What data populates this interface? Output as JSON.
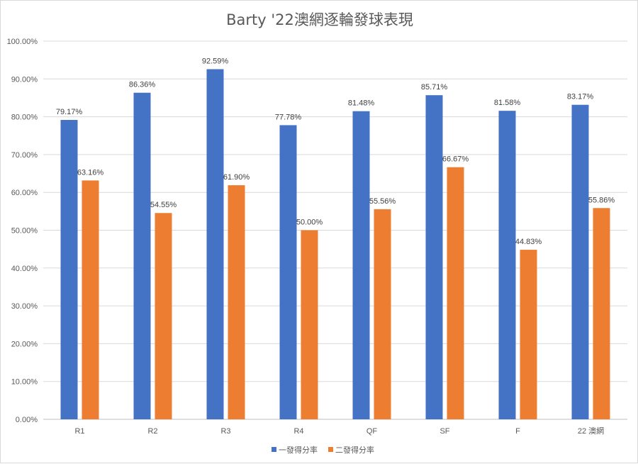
{
  "chart_data": {
    "type": "bar",
    "title": "Barty '22澳網逐輪發球表現",
    "categories": [
      "R1",
      "R2",
      "R3",
      "R4",
      "QF",
      "SF",
      "F",
      "22 澳網"
    ],
    "series": [
      {
        "name": "一發得分率",
        "color": "#4472C4",
        "values": [
          79.17,
          86.36,
          92.59,
          77.78,
          81.48,
          85.71,
          81.58,
          83.17
        ],
        "labels": [
          "79.17%",
          "86.36%",
          "92.59%",
          "77.78%",
          "81.48%",
          "85.71%",
          "81.58%",
          "83.17%"
        ]
      },
      {
        "name": "二發得分率",
        "color": "#ED7D31",
        "values": [
          63.16,
          54.55,
          61.9,
          50.0,
          55.56,
          66.67,
          44.83,
          55.86
        ],
        "labels": [
          "63.16%",
          "54.55%",
          "61.90%",
          "50.00%",
          "55.56%",
          "66.67%",
          "44.83%",
          "55.86%"
        ]
      }
    ],
    "ylim": [
      0,
      100
    ],
    "yticks": [
      "0.00%",
      "10.00%",
      "20.00%",
      "30.00%",
      "40.00%",
      "50.00%",
      "60.00%",
      "70.00%",
      "80.00%",
      "90.00%",
      "100.00%"
    ],
    "grid": true,
    "legend_position": "bottom"
  }
}
